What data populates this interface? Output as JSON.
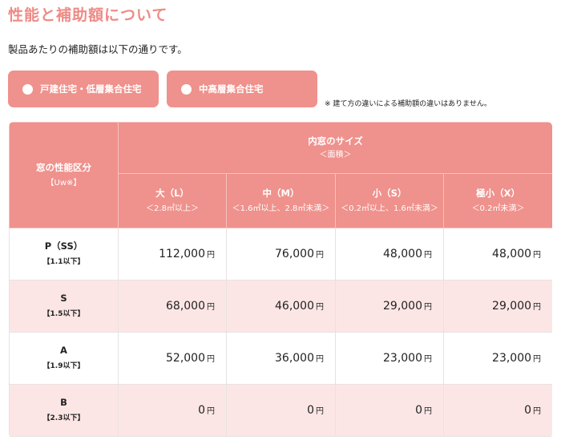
{
  "title": "性能と補助額について",
  "intro": "製品あたりの補助額は以下の通りです。",
  "tabs": [
    {
      "label": "戸建住宅・低層集合住宅"
    },
    {
      "label": "中高層集合住宅"
    }
  ],
  "note": "※ 建て方の違いによる補助額の違いはありません。",
  "table": {
    "perf_header": "窓の性能区分",
    "perf_header_sub": "【Uw※】",
    "size_header": "内窓のサイズ",
    "size_header_sub": "＜面積＞",
    "columns": [
      {
        "label": "大（L）",
        "sub": "＜2.8㎡以上＞"
      },
      {
        "label": "中（M）",
        "sub": "＜1.6㎡以上、2.8㎡未満＞"
      },
      {
        "label": "小（S）",
        "sub": "＜0.2㎡以上、1.6㎡未満＞"
      },
      {
        "label": "極小（X）",
        "sub": "＜0.2㎡未満＞"
      }
    ],
    "unit": "円",
    "rows": [
      {
        "grade": "P（SS）",
        "range": "【1.1以下】",
        "values": [
          "112,000",
          "76,000",
          "48,000",
          "48,000"
        ]
      },
      {
        "grade": "S",
        "range": "【1.5以下】",
        "values": [
          "68,000",
          "46,000",
          "29,000",
          "29,000"
        ]
      },
      {
        "grade": "A",
        "range": "【1.9以下】",
        "values": [
          "52,000",
          "36,000",
          "23,000",
          "23,000"
        ]
      },
      {
        "grade": "B",
        "range": "【2.3以下】",
        "values": [
          "0",
          "0",
          "0",
          "0"
        ]
      }
    ]
  },
  "colors": {
    "accent": "#ef918c",
    "title": "#ee8b86",
    "row_tint": "#fce6e5"
  }
}
